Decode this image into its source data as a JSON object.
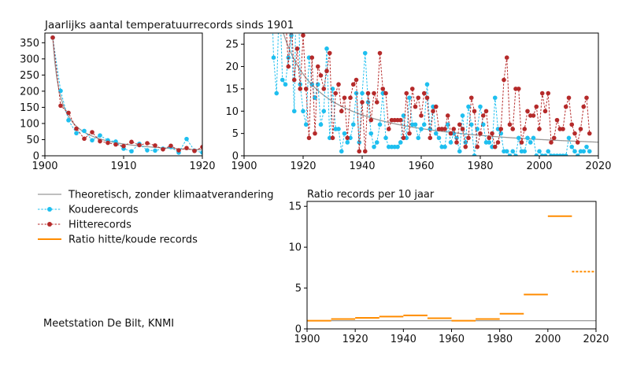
{
  "title": "Jaarlijks aantal temperatuurrecords sinds 1901",
  "source": "Meetstation De Bilt, KNMI",
  "colors": {
    "cold": "#1ebfef",
    "hot": "#b52a2a",
    "theory": "#999999",
    "ratio": "#ff8c00"
  },
  "legend": [
    {
      "label": "Theoretisch, zonder klimaatverandering",
      "key": "theory"
    },
    {
      "label": "Kouderecords",
      "key": "cold"
    },
    {
      "label": "Hitterecords",
      "key": "hot"
    },
    {
      "label": "Ratio hitte/koude records",
      "key": "ratio"
    }
  ],
  "chart_data": [
    {
      "type": "line",
      "panel": "left",
      "xlim": [
        1900,
        1920
      ],
      "ylim": [
        0,
        380
      ],
      "xticks": [
        "1900",
        "1910",
        "1920"
      ],
      "yticks": [
        "0",
        "50",
        "100",
        "150",
        "200",
        "250",
        "300",
        "350"
      ],
      "series_ref": "records"
    },
    {
      "type": "line",
      "panel": "right",
      "xlim": [
        1900,
        2020
      ],
      "ylim": [
        0,
        27.5
      ],
      "xticks": [
        "1900",
        "1920",
        "1940",
        "1960",
        "1980",
        "2000",
        "2020"
      ],
      "yticks": [
        "0",
        "5",
        "10",
        "15",
        "20",
        "25"
      ],
      "series_ref": "records"
    },
    {
      "type": "step",
      "title": "Ratio records per 10 jaar",
      "xlim": [
        1900,
        2020
      ],
      "ylim": [
        0,
        15.6
      ],
      "xticks": [
        "1900",
        "1920",
        "1940",
        "1960",
        "1980",
        "2000",
        "2020"
      ],
      "yticks": [
        "0",
        "5",
        "10",
        "15"
      ],
      "reference_line": 1,
      "decades": [
        {
          "start": 1900,
          "end": 1910,
          "ratio": 1.0
        },
        {
          "start": 1910,
          "end": 1920,
          "ratio": 1.2
        },
        {
          "start": 1920,
          "end": 1930,
          "ratio": 1.35
        },
        {
          "start": 1930,
          "end": 1940,
          "ratio": 1.5
        },
        {
          "start": 1940,
          "end": 1950,
          "ratio": 1.65
        },
        {
          "start": 1950,
          "end": 1960,
          "ratio": 1.3
        },
        {
          "start": 1960,
          "end": 1970,
          "ratio": 1.0
        },
        {
          "start": 1970,
          "end": 1980,
          "ratio": 1.2
        },
        {
          "start": 1980,
          "end": 1990,
          "ratio": 1.85
        },
        {
          "start": 1990,
          "end": 2000,
          "ratio": 4.2
        },
        {
          "start": 2000,
          "end": 2010,
          "ratio": 13.8
        },
        {
          "start": 2010,
          "end": 2020,
          "ratio": 7.0,
          "partial": true
        }
      ]
    }
  ],
  "records": {
    "start_year": 1901,
    "theory_first": 366,
    "cold": [
      366,
      201,
      110,
      70,
      77,
      48,
      63,
      48,
      44,
      22,
      14,
      37,
      17,
      16,
      22,
      27,
      10,
      52,
      16,
      10,
      7,
      22,
      16,
      13,
      16,
      7,
      10,
      24,
      4,
      15,
      6,
      6,
      1,
      5,
      3,
      4,
      7,
      14,
      3,
      14,
      23,
      12,
      5,
      2,
      3,
      7,
      14,
      4,
      2,
      2,
      2,
      2,
      3,
      9,
      4,
      13,
      7,
      7,
      4,
      6,
      7,
      16,
      6,
      11,
      5,
      4,
      2,
      2,
      7,
      3,
      5,
      4,
      1,
      9,
      3,
      11,
      7,
      0,
      6,
      11,
      7,
      3,
      3,
      2,
      13,
      6,
      5,
      1,
      1,
      0,
      1,
      0,
      4,
      1,
      1,
      4,
      3,
      4,
      0,
      1,
      0,
      0,
      1,
      0,
      0,
      0,
      0,
      0,
      0,
      4,
      2,
      1,
      0,
      1,
      1,
      2,
      1
    ],
    "hot": [
      366,
      155,
      133,
      84,
      53,
      73,
      45,
      40,
      35,
      30,
      43,
      33,
      39,
      32,
      20,
      31,
      17,
      24,
      15,
      27,
      15,
      4,
      22,
      5,
      20,
      18,
      15,
      19,
      23,
      4,
      14,
      16,
      10,
      13,
      4,
      13,
      16,
      17,
      1,
      12,
      1,
      14,
      8,
      14,
      12,
      23,
      15,
      14,
      6,
      8,
      8,
      8,
      8,
      4,
      14,
      5,
      15,
      11,
      13,
      9,
      14,
      13,
      4,
      10,
      11,
      6,
      6,
      6,
      9,
      5,
      6,
      3,
      7,
      6,
      2,
      4,
      13,
      10,
      2,
      5,
      9,
      10,
      4,
      5,
      2,
      3,
      6,
      17,
      22,
      7,
      6,
      15,
      15,
      3,
      6,
      10,
      9,
      9,
      11,
      6,
      14,
      10,
      14,
      3,
      4,
      8,
      6,
      6,
      11,
      13,
      7,
      5,
      3,
      6,
      11,
      13,
      5
    ]
  }
}
